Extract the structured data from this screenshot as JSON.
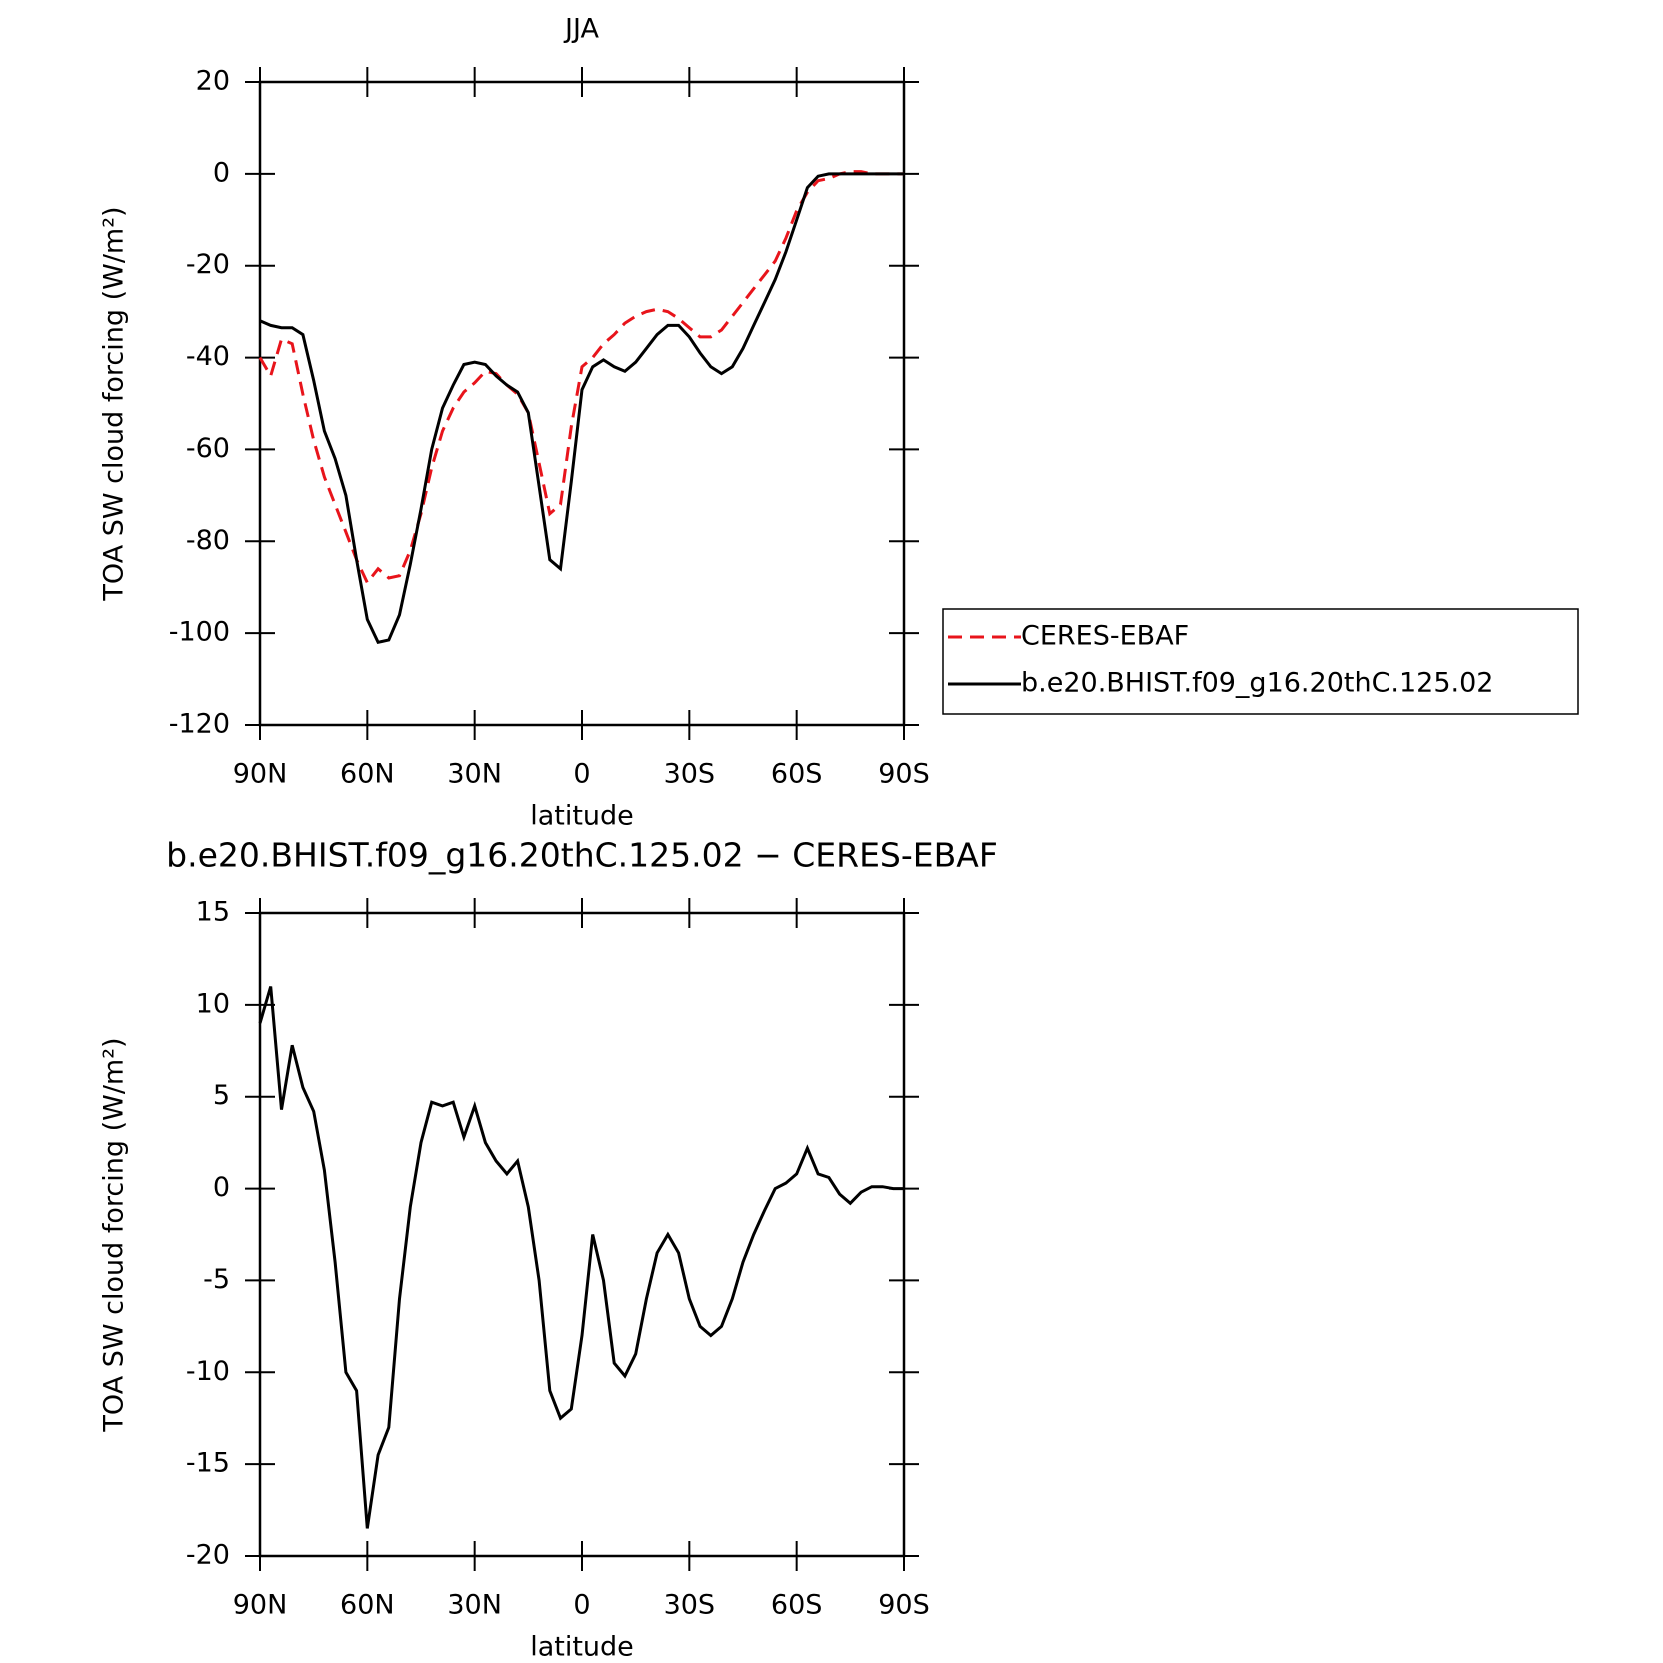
{
  "chart_data": [
    {
      "type": "line",
      "title": "JJA",
      "xlabel": "latitude",
      "ylabel": "TOA SW cloud forcing (W/m²)",
      "x": [
        90,
        87,
        84,
        81,
        78,
        75,
        72,
        69,
        66,
        63,
        60,
        57,
        54,
        51,
        48,
        45,
        42,
        39,
        36,
        33,
        30,
        27,
        24,
        21,
        18,
        15,
        12,
        9,
        6,
        3,
        0,
        -3,
        -6,
        -9,
        -12,
        -15,
        -18,
        -21,
        -24,
        -27,
        -30,
        -33,
        -36,
        -39,
        -42,
        -45,
        -48,
        -51,
        -54,
        -57,
        -60,
        -63,
        -66,
        -69,
        -72,
        -75,
        -78,
        -81,
        -84,
        -87,
        -90
      ],
      "series": [
        {
          "name": "CERES-EBAF",
          "color": "#e8141b",
          "dash": true,
          "values": [
            -40,
            -44,
            -36,
            -37,
            -48,
            -58,
            -66,
            -72,
            -78,
            -84,
            -89,
            -86,
            -88,
            -87.5,
            -82,
            -74,
            -64,
            -56,
            -51,
            -47.5,
            -45.5,
            -43,
            -43.5,
            -46,
            -48,
            -52,
            -63,
            -74,
            -72,
            -55,
            -42,
            -40,
            -37,
            -35,
            -32.5,
            -31,
            -30,
            -29.5,
            -30,
            -31.5,
            -33.5,
            -35.5,
            -35.5,
            -34,
            -31,
            -28,
            -25,
            -22,
            -19,
            -14,
            -8,
            -4,
            -1.5,
            -1,
            0,
            0.5,
            0.5,
            0,
            0,
            0,
            0
          ]
        },
        {
          "name": "b.e20.BHIST.f09_g16.20thC.125.02",
          "color": "#000000",
          "dash": false,
          "values": [
            -32,
            -33,
            -33.5,
            -33.5,
            -35,
            -45,
            -56,
            -62,
            -70,
            -84,
            -97,
            -102,
            -101.5,
            -96,
            -85,
            -73,
            -60,
            -51,
            -46,
            -41.5,
            -41,
            -41.5,
            -44,
            -46,
            -47.5,
            -52,
            -68,
            -84,
            -86,
            -67,
            -47,
            -42,
            -40.5,
            -42,
            -43,
            -41,
            -38,
            -35,
            -33,
            -33,
            -35.5,
            -39,
            -42,
            -43.5,
            -42,
            -38,
            -33,
            -28,
            -23,
            -17,
            -10,
            -3,
            -0.5,
            0,
            0,
            0,
            0,
            0,
            0,
            0,
            0
          ]
        }
      ],
      "xlim": [
        90,
        -90
      ],
      "xticks": [
        {
          "value": 90,
          "label": "90N"
        },
        {
          "value": 60,
          "label": "60N"
        },
        {
          "value": 30,
          "label": "30N"
        },
        0,
        {
          "value": -30,
          "label": "30S"
        },
        {
          "value": -60,
          "label": "60S"
        },
        {
          "value": -90,
          "label": "90S"
        }
      ],
      "ylim": [
        -120,
        20
      ],
      "yticks": [
        -120,
        -100,
        -80,
        -60,
        -40,
        -20,
        0,
        20
      ],
      "legend": "right"
    },
    {
      "type": "line",
      "title": "b.e20.BHIST.f09_g16.20thC.125.02 − CERES-EBAF",
      "xlabel": "latitude",
      "ylabel": "TOA SW cloud forcing (W/m²)",
      "x": [
        90,
        87,
        84,
        81,
        78,
        75,
        72,
        69,
        66,
        63,
        60,
        57,
        54,
        51,
        48,
        45,
        42,
        39,
        36,
        33,
        30,
        27,
        24,
        21,
        18,
        15,
        12,
        9,
        6,
        3,
        0,
        -3,
        -6,
        -9,
        -12,
        -15,
        -18,
        -21,
        -24,
        -27,
        -30,
        -33,
        -36,
        -39,
        -42,
        -45,
        -48,
        -51,
        -54,
        -57,
        -60,
        -63,
        -66,
        -69,
        -72,
        -75,
        -78,
        -81,
        -84,
        -87,
        -90
      ],
      "series": [
        {
          "color": "#000000",
          "dash": false,
          "values": [
            9,
            11,
            4.3,
            7.8,
            5.5,
            4.2,
            1,
            -4,
            -10,
            -11,
            -18.5,
            -14.5,
            -13,
            -6,
            -1,
            2.5,
            4.7,
            4.5,
            4.7,
            2.8,
            4.5,
            2.5,
            1.5,
            0.8,
            1.5,
            -1,
            -5,
            -11,
            -12.5,
            -12,
            -8,
            -2.5,
            -5,
            -9.5,
            -10.2,
            -9,
            -6,
            -3.5,
            -2.5,
            -3.5,
            -6,
            -7.5,
            -8,
            -7.5,
            -6,
            -4,
            -2.5,
            -1.2,
            0,
            0.3,
            0.8,
            2.2,
            0.8,
            0.6,
            -0.3,
            -0.8,
            -0.2,
            0.1,
            0.1,
            0,
            0
          ]
        }
      ],
      "xlim": [
        90,
        -90
      ],
      "xticks": [
        {
          "value": 90,
          "label": "90N"
        },
        {
          "value": 60,
          "label": "60N"
        },
        {
          "value": 30,
          "label": "30N"
        },
        0,
        {
          "value": -30,
          "label": "30S"
        },
        {
          "value": -60,
          "label": "60S"
        },
        {
          "value": -90,
          "label": "90S"
        }
      ],
      "ylim": [
        -20,
        15
      ],
      "yticks": [
        -20,
        -15,
        -10,
        -5,
        0,
        5,
        10,
        15
      ]
    }
  ]
}
